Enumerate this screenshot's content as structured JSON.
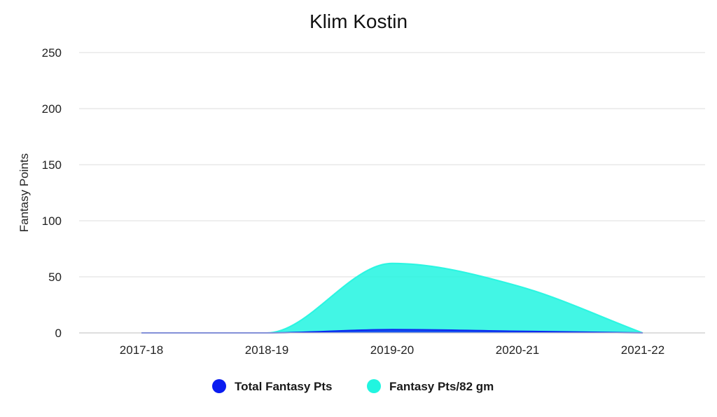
{
  "chart_data": {
    "type": "area",
    "title": "Klim Kostin",
    "xlabel": "",
    "ylabel": "Fantasy Points",
    "categories": [
      "2017-18",
      "2018-19",
      "2019-20",
      "2020-21",
      "2021-22"
    ],
    "ylim": [
      0,
      250
    ],
    "yticks": [
      0,
      50,
      100,
      150,
      200,
      250
    ],
    "grid": true,
    "legend_position": "bottom",
    "series": [
      {
        "name": "Total Fantasy Pts",
        "values": [
          0,
          0,
          3,
          1.5,
          0
        ],
        "color": "#0a1cf0"
      },
      {
        "name": "Fantasy Pts/82 gm",
        "values": [
          0,
          0,
          62,
          42,
          0
        ],
        "color": "#21f5e0"
      }
    ]
  }
}
